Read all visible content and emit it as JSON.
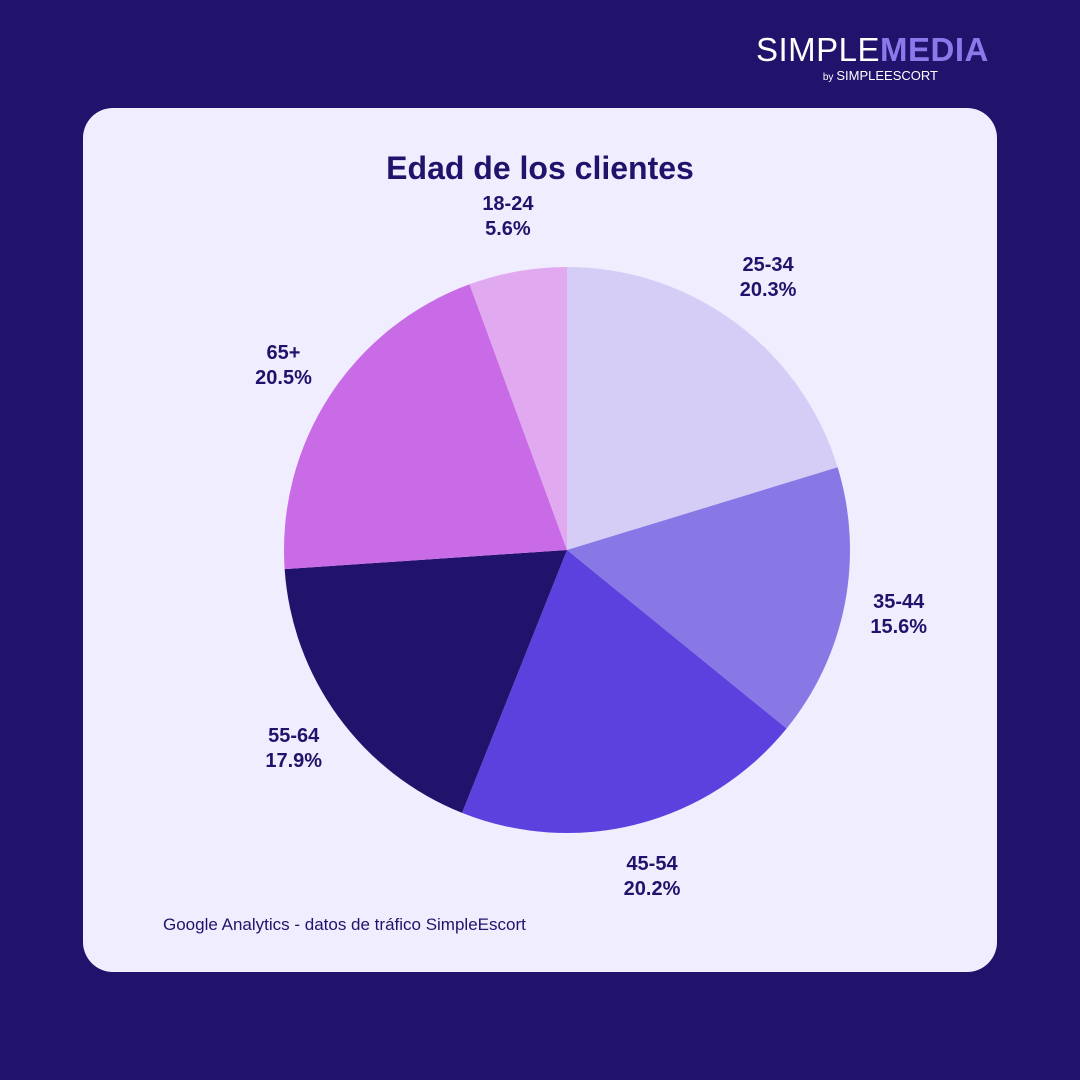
{
  "brand": {
    "name_part1": "SIMPLE",
    "name_part2": "MEDIA",
    "by": "by",
    "sub": "SIMPLEESCORT"
  },
  "source_note": "Google Analytics - datos de tráfico SimpleEscort",
  "chart_data": {
    "type": "pie",
    "title": "Edad de los clientes",
    "categories": [
      "18-24",
      "25-34",
      "35-44",
      "45-54",
      "55-64",
      "65+"
    ],
    "values": [
      5.6,
      20.3,
      15.6,
      20.2,
      17.9,
      20.5
    ],
    "value_labels": [
      "5.6%",
      "20.3%",
      "15.6%",
      "20.2%",
      "17.9%",
      "20.5%"
    ],
    "colors": [
      "#e1aaf0",
      "#d5cdf6",
      "#8878e6",
      "#5d41de",
      "#21136b",
      "#c96be6"
    ],
    "start_category": "25-34",
    "direction": "clockwise"
  }
}
